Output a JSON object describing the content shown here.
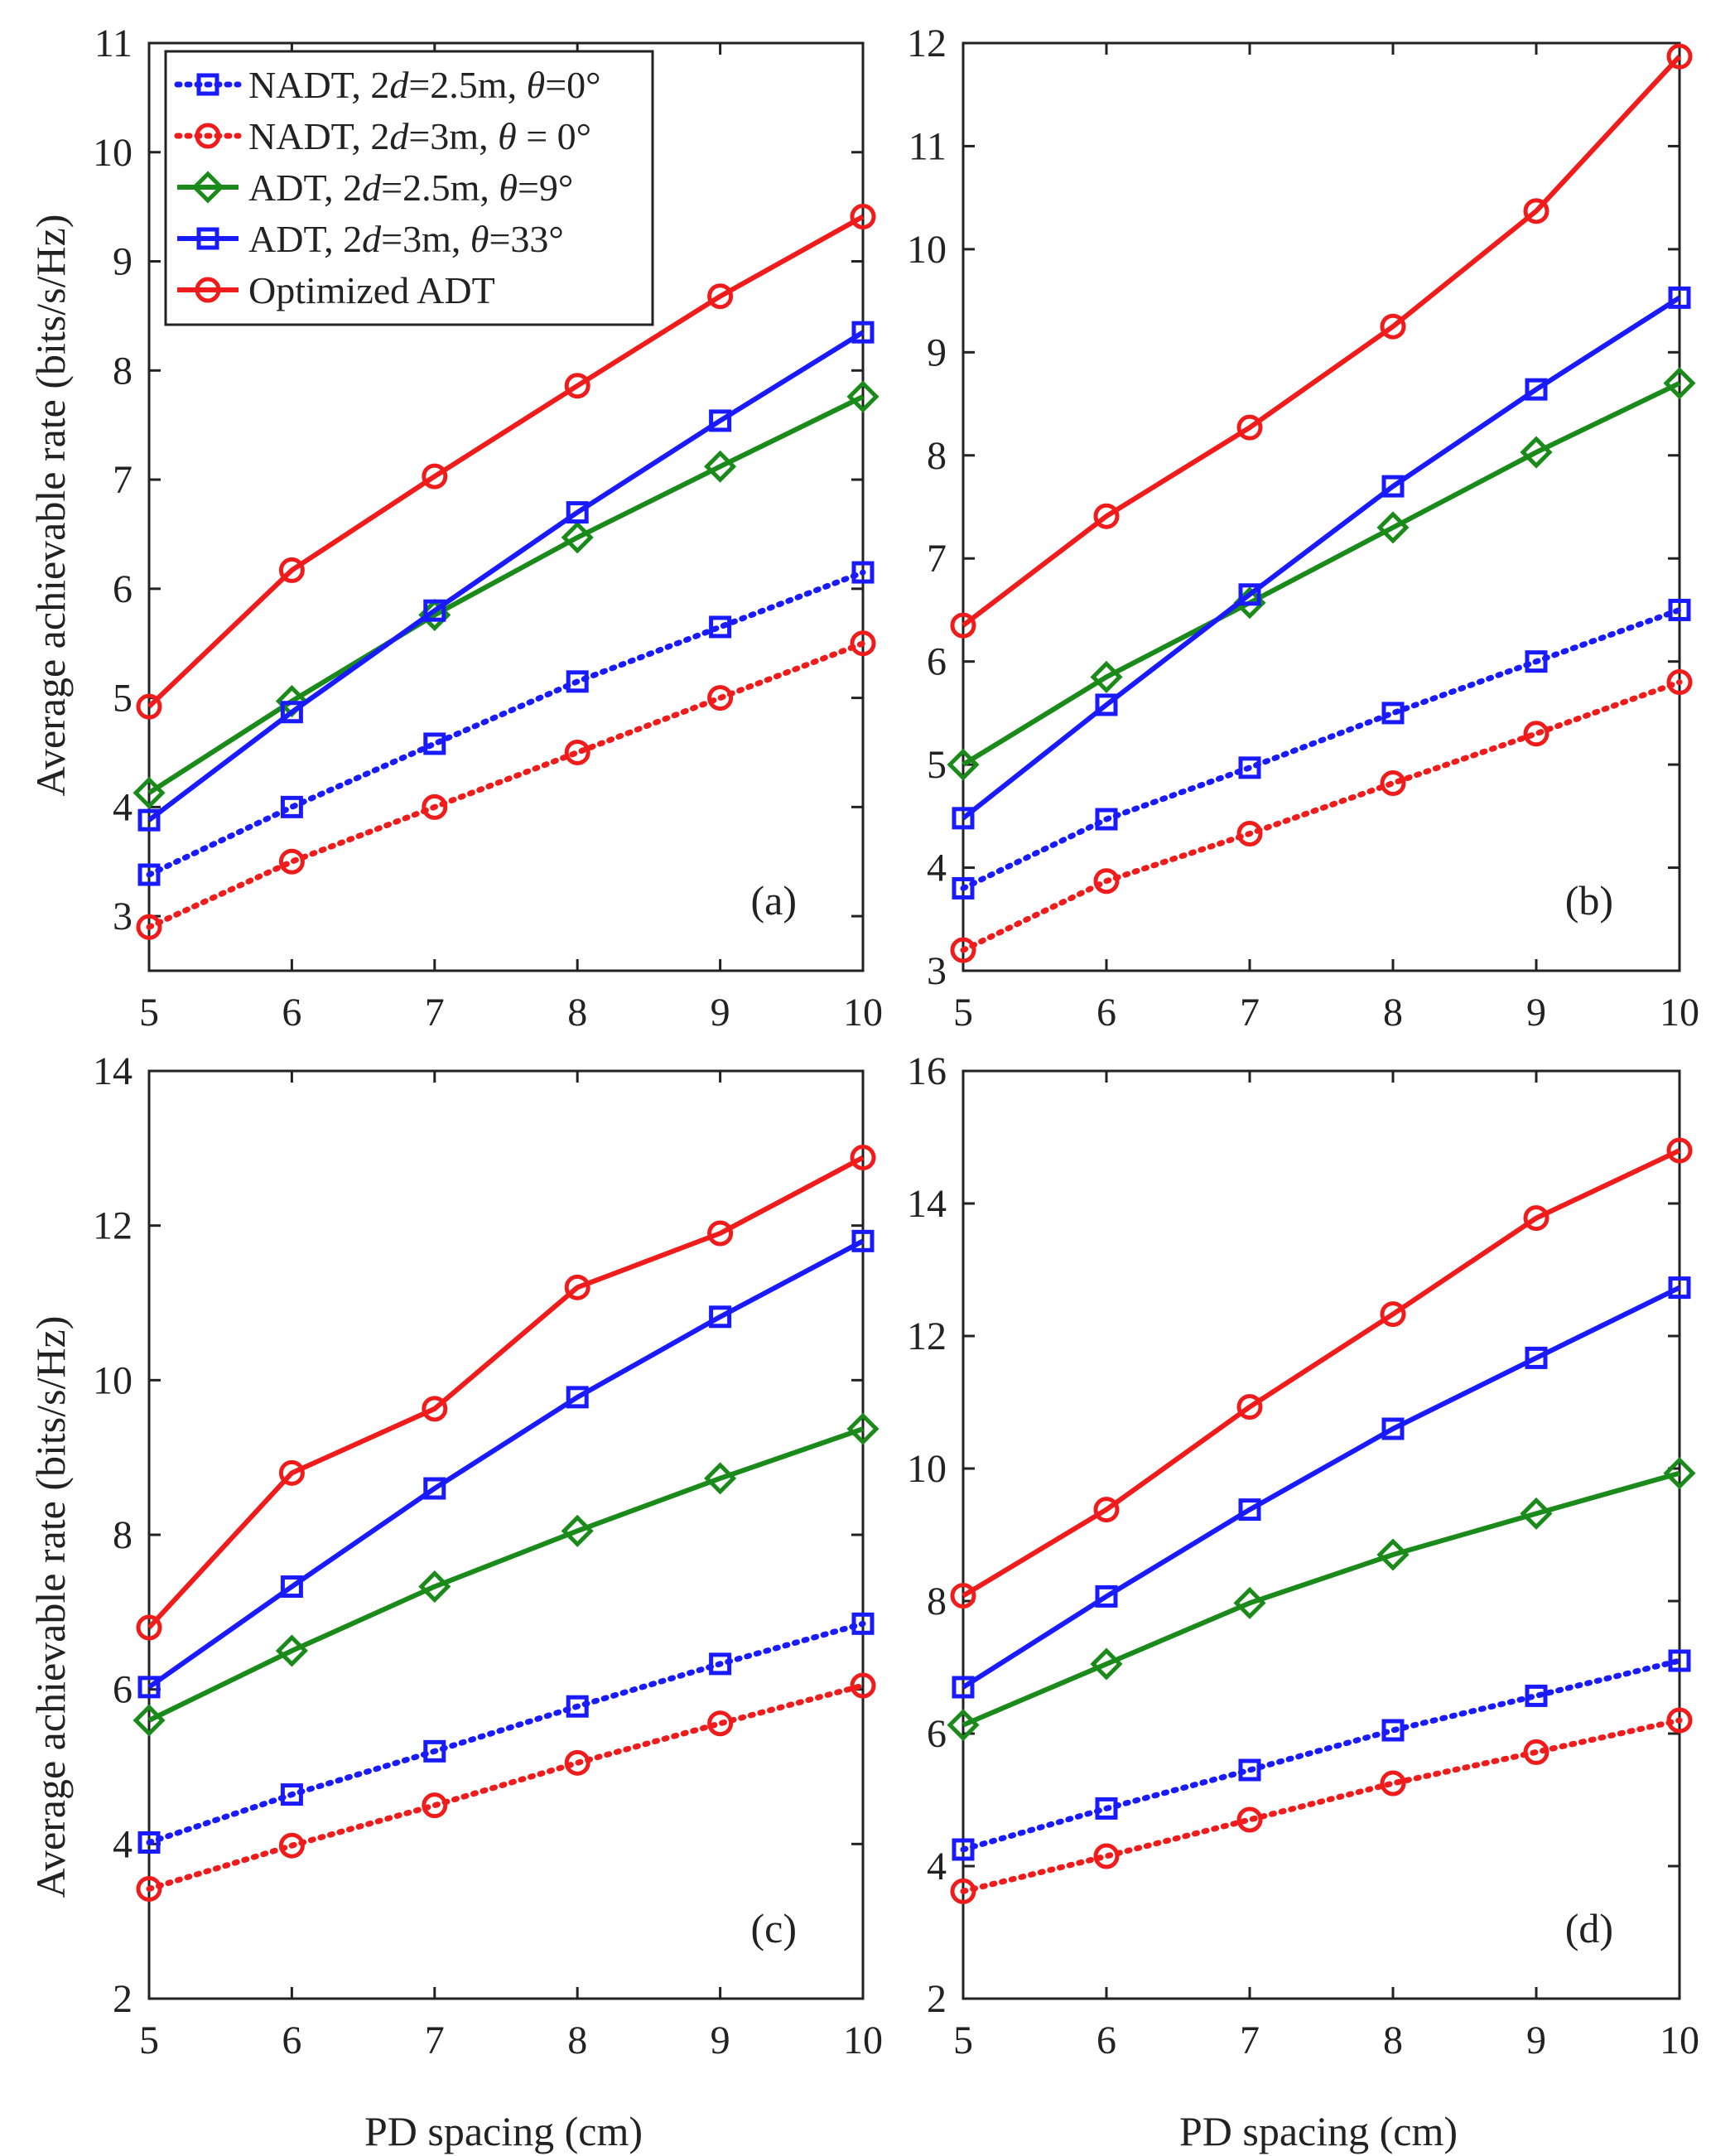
{
  "figure": {
    "ylabel": "Average achievable rate (bits/s/Hz)",
    "xlabel": "PD spacing (cm)"
  },
  "colors": {
    "blue": "#1a1aff",
    "red": "#f01c1c",
    "green": "#1a8a1a"
  },
  "legend": [
    {
      "parts": [
        {
          "t": "NADT, 2"
        },
        {
          "t": "d",
          "i": true
        },
        {
          "t": "=2.5m, "
        },
        {
          "t": "θ",
          "i": true
        },
        {
          "t": "=0°"
        }
      ],
      "color": "#1a1aff",
      "dash": true,
      "marker": "square"
    },
    {
      "parts": [
        {
          "t": "NADT, 2"
        },
        {
          "t": "d",
          "i": true
        },
        {
          "t": "=3m, "
        },
        {
          "t": "θ",
          "i": true
        },
        {
          "t": " = 0°"
        }
      ],
      "color": "#f01c1c",
      "dash": true,
      "marker": "circle"
    },
    {
      "parts": [
        {
          "t": "ADT, 2"
        },
        {
          "t": "d",
          "i": true
        },
        {
          "t": "=2.5m, "
        },
        {
          "t": "θ",
          "i": true
        },
        {
          "t": "=9°"
        }
      ],
      "color": "#1a8a1a",
      "dash": false,
      "marker": "diamond"
    },
    {
      "parts": [
        {
          "t": "ADT, 2"
        },
        {
          "t": "d",
          "i": true
        },
        {
          "t": "=3m, "
        },
        {
          "t": "θ",
          "i": true
        },
        {
          "t": "=33°"
        }
      ],
      "color": "#1a1aff",
      "dash": false,
      "marker": "square"
    },
    {
      "parts": [
        {
          "t": "Optimized ADT"
        }
      ],
      "color": "#f01c1c",
      "dash": false,
      "marker": "circle"
    }
  ],
  "chart_data": [
    {
      "type": "line",
      "label": "(a)",
      "x": [
        5,
        6,
        7,
        8,
        9,
        10
      ],
      "xlim": [
        5,
        10
      ],
      "ylim": [
        2.5,
        11
      ],
      "yticks": [
        3,
        4,
        5,
        6,
        7,
        8,
        9,
        10,
        11
      ],
      "series": [
        {
          "name": "NADT, 2d=2.5m, θ=0°",
          "values": [
            3.38,
            4.0,
            4.58,
            5.15,
            5.65,
            6.15
          ]
        },
        {
          "name": "NADT, 2d=3m, θ = 0°",
          "values": [
            2.9,
            3.5,
            4.0,
            4.5,
            5.0,
            5.5
          ]
        },
        {
          "name": "ADT, 2d=2.5m, θ=9°",
          "values": [
            4.13,
            4.97,
            5.76,
            6.47,
            7.12,
            7.76
          ]
        },
        {
          "name": "ADT, 2d=3m, θ=33°",
          "values": [
            3.88,
            4.87,
            5.8,
            6.7,
            7.54,
            8.35
          ]
        },
        {
          "name": "Optimized ADT",
          "values": [
            4.92,
            6.17,
            7.03,
            7.86,
            8.68,
            9.41
          ]
        }
      ]
    },
    {
      "type": "line",
      "label": "(b)",
      "x": [
        5,
        6,
        7,
        8,
        9,
        10
      ],
      "xlim": [
        5,
        10
      ],
      "ylim": [
        3,
        12
      ],
      "yticks": [
        3,
        4,
        5,
        6,
        7,
        8,
        9,
        10,
        11,
        12
      ],
      "series": [
        {
          "name": "NADT, 2d=2.5m, θ=0°",
          "values": [
            3.8,
            4.47,
            4.97,
            5.5,
            6.0,
            6.5
          ]
        },
        {
          "name": "NADT, 2d=3m, θ = 0°",
          "values": [
            3.2,
            3.87,
            4.33,
            4.82,
            5.3,
            5.8
          ]
        },
        {
          "name": "ADT, 2d=2.5m, θ=9°",
          "values": [
            5.0,
            5.85,
            6.57,
            7.3,
            8.03,
            8.7
          ]
        },
        {
          "name": "ADT, 2d=3m, θ=33°",
          "values": [
            4.48,
            5.58,
            6.65,
            7.7,
            8.64,
            9.53
          ]
        },
        {
          "name": "Optimized ADT",
          "values": [
            6.35,
            7.41,
            8.27,
            9.25,
            10.37,
            11.87
          ]
        }
      ]
    },
    {
      "type": "line",
      "label": "(c)",
      "x": [
        5,
        6,
        7,
        8,
        9,
        10
      ],
      "xlim": [
        5,
        10
      ],
      "ylim": [
        2,
        14
      ],
      "yticks": [
        2,
        4,
        6,
        8,
        10,
        12,
        14
      ],
      "series": [
        {
          "name": "NADT, 2d=2.5m, θ=0°",
          "values": [
            4.02,
            4.64,
            5.2,
            5.78,
            6.33,
            6.85
          ]
        },
        {
          "name": "NADT, 2d=3m, θ = 0°",
          "values": [
            3.42,
            3.98,
            4.5,
            5.05,
            5.56,
            6.05
          ]
        },
        {
          "name": "ADT, 2d=2.5m, θ=9°",
          "values": [
            5.6,
            6.5,
            7.33,
            8.05,
            8.73,
            9.37
          ]
        },
        {
          "name": "ADT, 2d=3m, θ=33°",
          "values": [
            6.03,
            7.33,
            8.6,
            9.78,
            10.82,
            11.8
          ]
        },
        {
          "name": "Optimized ADT",
          "values": [
            6.8,
            8.8,
            9.63,
            11.2,
            11.9,
            12.88
          ]
        }
      ]
    },
    {
      "type": "line",
      "label": "(d)",
      "x": [
        5,
        6,
        7,
        8,
        9,
        10
      ],
      "xlim": [
        5,
        10
      ],
      "ylim": [
        2,
        16
      ],
      "yticks": [
        2,
        4,
        6,
        8,
        10,
        12,
        14,
        16
      ],
      "series": [
        {
          "name": "NADT, 2d=2.5m, θ=0°",
          "values": [
            4.25,
            4.87,
            5.45,
            6.05,
            6.57,
            7.1
          ]
        },
        {
          "name": "NADT, 2d=3m, θ = 0°",
          "values": [
            3.62,
            4.15,
            4.7,
            5.25,
            5.72,
            6.2
          ]
        },
        {
          "name": "ADT, 2d=2.5m, θ=9°",
          "values": [
            6.13,
            7.05,
            7.97,
            8.7,
            9.32,
            9.93
          ]
        },
        {
          "name": "ADT, 2d=3m, θ=33°",
          "values": [
            6.7,
            8.07,
            9.38,
            10.6,
            11.67,
            12.73
          ]
        },
        {
          "name": "Optimized ADT",
          "values": [
            8.08,
            9.38,
            10.93,
            12.33,
            13.78,
            14.8
          ]
        }
      ]
    }
  ]
}
